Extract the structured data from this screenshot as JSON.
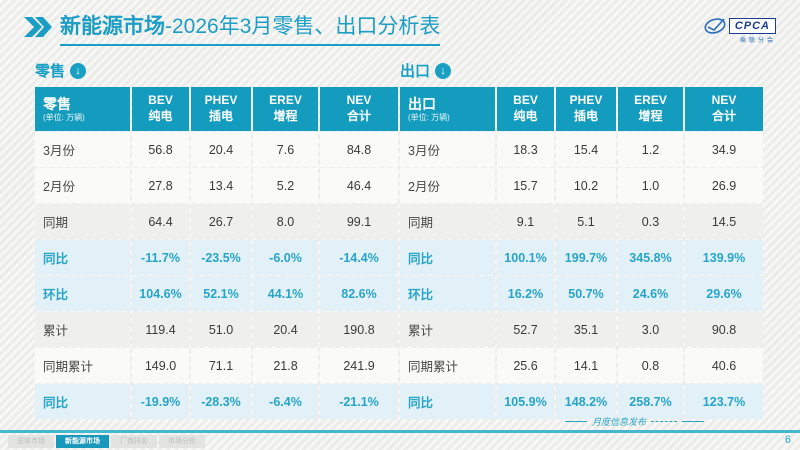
{
  "header": {
    "title_bold": "新能源市场",
    "title_rest": "-2026年3月零售、出口分析表",
    "logo_text": "CPCA",
    "logo_subtext": "乘联分会"
  },
  "icons": {
    "section_arrow": "↓"
  },
  "colors": {
    "accent_teal": "#149cbe",
    "percent_text": "#27a5c9",
    "percent_row_bg": "#e2f0f7",
    "title_teal": "#1c9ec4",
    "logo_navy": "#1b3d8f"
  },
  "tables": [
    {
      "section_label": "零售",
      "title": "零售",
      "unit": "(单位: 万辆)",
      "columns": [
        {
          "en": "BEV",
          "zh": "纯电"
        },
        {
          "en": "PHEV",
          "zh": "插电"
        },
        {
          "en": "EREV",
          "zh": "增程"
        },
        {
          "en": "NEV",
          "zh": "合计"
        }
      ],
      "rows": [
        {
          "label": "3月份",
          "values": [
            "56.8",
            "20.4",
            "7.6",
            "84.8"
          ],
          "style": "plain"
        },
        {
          "label": "2月份",
          "values": [
            "27.8",
            "13.4",
            "5.2",
            "46.4"
          ],
          "style": "plain"
        },
        {
          "label": "同期",
          "values": [
            "64.4",
            "26.7",
            "8.0",
            "99.1"
          ],
          "style": "shaded"
        },
        {
          "label": "同比",
          "values": [
            "-11.7%",
            "-23.5%",
            "-6.0%",
            "-14.4%"
          ],
          "style": "percent"
        },
        {
          "label": "环比",
          "values": [
            "104.6%",
            "52.1%",
            "44.1%",
            "82.6%"
          ],
          "style": "percent"
        },
        {
          "label": "累计",
          "values": [
            "119.4",
            "51.0",
            "20.4",
            "190.8"
          ],
          "style": "shaded"
        },
        {
          "label": "同期累计",
          "values": [
            "149.0",
            "71.1",
            "21.8",
            "241.9"
          ],
          "style": "plain"
        },
        {
          "label": "同比",
          "values": [
            "-19.9%",
            "-28.3%",
            "-6.4%",
            "-21.1%"
          ],
          "style": "percent"
        }
      ]
    },
    {
      "section_label": "出口",
      "title": "出口",
      "unit": "(单位: 万辆)",
      "columns": [
        {
          "en": "BEV",
          "zh": "纯电"
        },
        {
          "en": "PHEV",
          "zh": "插电"
        },
        {
          "en": "EREV",
          "zh": "增程"
        },
        {
          "en": "NEV",
          "zh": "合计"
        }
      ],
      "rows": [
        {
          "label": "3月份",
          "values": [
            "18.3",
            "15.4",
            "1.2",
            "34.9"
          ],
          "style": "plain"
        },
        {
          "label": "2月份",
          "values": [
            "15.7",
            "10.2",
            "1.0",
            "26.9"
          ],
          "style": "plain"
        },
        {
          "label": "同期",
          "values": [
            "9.1",
            "5.1",
            "0.3",
            "14.5"
          ],
          "style": "shaded"
        },
        {
          "label": "同比",
          "values": [
            "100.1%",
            "199.7%",
            "345.8%",
            "139.9%"
          ],
          "style": "percent"
        },
        {
          "label": "环比",
          "values": [
            "16.2%",
            "50.7%",
            "24.6%",
            "29.6%"
          ],
          "style": "percent"
        },
        {
          "label": "累计",
          "values": [
            "52.7",
            "35.1",
            "3.0",
            "90.8"
          ],
          "style": "shaded"
        },
        {
          "label": "同期累计",
          "values": [
            "25.6",
            "14.1",
            "0.8",
            "40.6"
          ],
          "style": "plain"
        },
        {
          "label": "同比",
          "values": [
            "105.9%",
            "148.2%",
            "258.7%",
            "123.7%"
          ],
          "style": "percent"
        }
      ]
    }
  ],
  "footer": {
    "tabs": [
      {
        "label": "总体市场",
        "active": false
      },
      {
        "label": "新能源市场",
        "active": true
      },
      {
        "label": "厂商排名",
        "active": false
      },
      {
        "label": "市场分析",
        "active": false
      }
    ],
    "watermark": "月度信息发布",
    "page_number": "6"
  }
}
